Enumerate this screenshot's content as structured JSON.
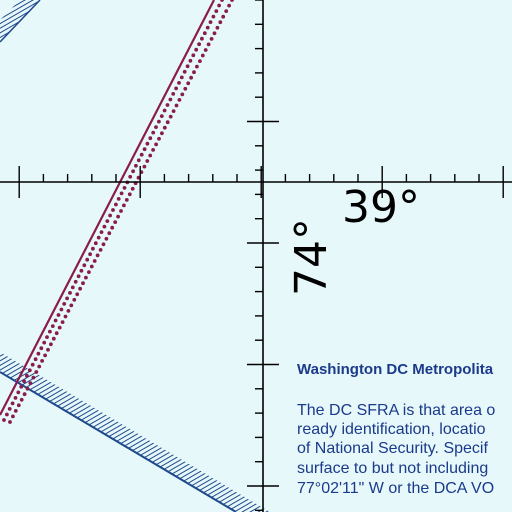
{
  "map": {
    "background_color": "#e6f8fa",
    "gridline_color": "#000000",
    "route_color": "#8a1c4a",
    "boundary_color": "#1f4a8c",
    "labels": {
      "latitude": "39°",
      "longitude": "74°"
    }
  },
  "notice": {
    "heading": "Washington DC Metropolita",
    "lines": [
      "The DC SFRA is that area o",
      "ready identification, locatio",
      "of National Security. Specif",
      "surface to but not including",
      "77°02'11\" W or the DCA VO"
    ]
  }
}
